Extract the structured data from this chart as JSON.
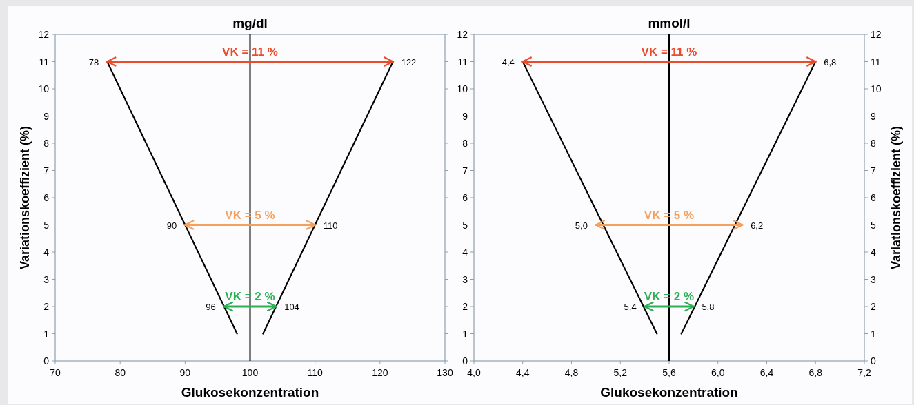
{
  "chart_data": [
    {
      "type": "line",
      "title": "mg/dl",
      "xlabel": "Glukosekonzentration",
      "ylabel": "Variationskoeffizient (%)",
      "xlim": [
        70,
        130
      ],
      "xticks": [
        70,
        80,
        90,
        100,
        110,
        120,
        130
      ],
      "ylim": [
        0,
        12
      ],
      "yticks": [
        0,
        1,
        2,
        3,
        4,
        5,
        6,
        7,
        8,
        9,
        10,
        11,
        12
      ],
      "grid": false,
      "series": [
        {
          "color": "#000000",
          "x": [
            78,
            98
          ],
          "values": [
            11,
            1
          ]
        },
        {
          "color": "#000000",
          "x": [
            122,
            102
          ],
          "values": [
            11,
            1
          ]
        },
        {
          "color": "#ea4b2a",
          "x": [
            78,
            122
          ],
          "values": [
            11,
            11
          ]
        },
        {
          "color": "#f5a15e",
          "x": [
            90,
            110
          ],
          "values": [
            5,
            5
          ]
        },
        {
          "color": "#2eae55",
          "x": [
            96,
            104
          ],
          "values": [
            2,
            2
          ]
        }
      ],
      "ref_lines": [
        {
          "axis": "x",
          "value": 100,
          "color": "#000000"
        }
      ],
      "annotations": [
        {
          "text": "VK = 11 %",
          "x": 100,
          "y": 11
        },
        {
          "text": "VK = 5 %",
          "x": 100,
          "y": 5
        },
        {
          "text": "VK = 2 %",
          "x": 100,
          "y": 2
        },
        {
          "text": "78",
          "x": 78,
          "y": 11
        },
        {
          "text": "122",
          "x": 122,
          "y": 11
        },
        {
          "text": "90",
          "x": 90,
          "y": 5
        },
        {
          "text": "110",
          "x": 110,
          "y": 5
        },
        {
          "text": "96",
          "x": 96,
          "y": 2
        },
        {
          "text": "104",
          "x": 104,
          "y": 2
        }
      ]
    },
    {
      "type": "line",
      "title": "mmol/l",
      "xlabel": "Glukosekonzentration",
      "y2label": "Variationskoeffizient (%)",
      "xlim": [
        4.0,
        7.2
      ],
      "xticks": [
        {
          "value": 4.0,
          "label": "4,0"
        },
        {
          "value": 4.4,
          "label": "4,4"
        },
        {
          "value": 4.8,
          "label": "4,8"
        },
        {
          "value": 5.2,
          "label": "5,2"
        },
        {
          "value": 5.6,
          "label": "5,6"
        },
        {
          "value": 6.0,
          "label": "6,0"
        },
        {
          "value": 6.4,
          "label": "6,4"
        },
        {
          "value": 6.8,
          "label": "6,8"
        },
        {
          "value": 7.2,
          "label": "7,2"
        }
      ],
      "ylim": [
        0,
        12
      ],
      "yticks": [
        0,
        1,
        2,
        3,
        4,
        5,
        6,
        7,
        8,
        9,
        10,
        11,
        12
      ],
      "y2lim": [
        0,
        12
      ],
      "y2ticks": [
        0,
        1,
        2,
        3,
        4,
        5,
        6,
        7,
        8,
        9,
        10,
        11,
        12
      ],
      "grid": false,
      "series": [
        {
          "color": "#000000",
          "x": [
            4.4,
            5.5
          ],
          "values": [
            11,
            1
          ]
        },
        {
          "color": "#000000",
          "x": [
            6.8,
            5.7
          ],
          "values": [
            11,
            1
          ]
        },
        {
          "color": "#ea4b2a",
          "x": [
            4.4,
            6.8
          ],
          "values": [
            11,
            11
          ]
        },
        {
          "color": "#f5a15e",
          "x": [
            5.0,
            6.2
          ],
          "values": [
            5,
            5
          ]
        },
        {
          "color": "#2eae55",
          "x": [
            5.4,
            5.8
          ],
          "values": [
            2,
            2
          ]
        }
      ],
      "ref_lines": [
        {
          "axis": "x",
          "value": 5.6,
          "color": "#000000"
        }
      ],
      "annotations": [
        {
          "text": "VK = 11 %",
          "x": 5.6,
          "y": 11
        },
        {
          "text": "VK = 5 %",
          "x": 5.6,
          "y": 5
        },
        {
          "text": "VK = 2 %",
          "x": 5.6,
          "y": 2
        },
        {
          "text": "4,4",
          "x": 4.4,
          "y": 11
        },
        {
          "text": "6,8",
          "x": 6.8,
          "y": 11
        },
        {
          "text": "5,0",
          "x": 5.0,
          "y": 5
        },
        {
          "text": "6,2",
          "x": 6.2,
          "y": 5
        },
        {
          "text": "5,4",
          "x": 5.4,
          "y": 2
        },
        {
          "text": "5,8",
          "x": 5.8,
          "y": 2
        }
      ]
    }
  ]
}
